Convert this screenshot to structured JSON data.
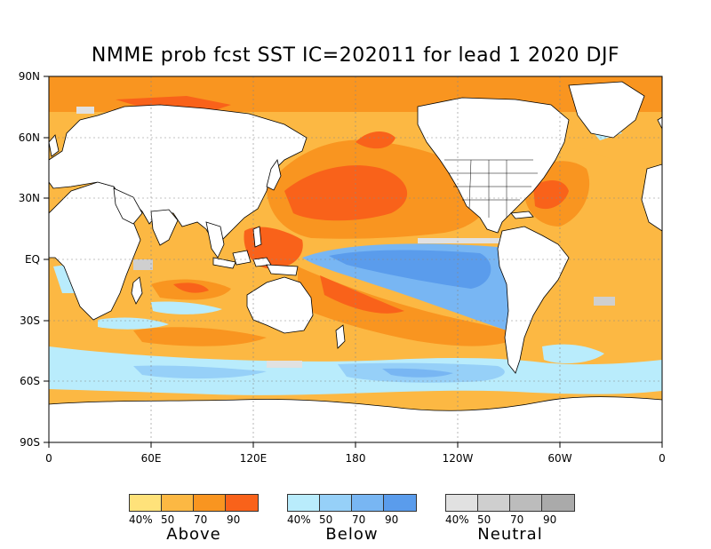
{
  "title": "NMME prob fcst SST IC=202011 for lead 1 2020 DJF",
  "y_axis": {
    "ticks": [
      "90N",
      "60N",
      "30N",
      "EQ",
      "30S",
      "60S",
      "90S"
    ]
  },
  "x_axis": {
    "ticks": [
      "0",
      "60E",
      "120E",
      "180",
      "120W",
      "60W",
      "0"
    ]
  },
  "legends": [
    {
      "name": "Above",
      "ticks": [
        "40%",
        "50",
        "70",
        "90"
      ],
      "colors": [
        "#ffe27a",
        "#fcb843",
        "#f99520",
        "#f9621a"
      ]
    },
    {
      "name": "Below",
      "ticks": [
        "40%",
        "50",
        "70",
        "90"
      ],
      "colors": [
        "#b9ecfc",
        "#96d0f8",
        "#78b6f3",
        "#5a9cec"
      ]
    },
    {
      "name": "Neutral",
      "ticks": [
        "40%",
        "50",
        "70",
        "90"
      ],
      "colors": [
        "#e1e1e1",
        "#cfcfcf",
        "#bcbcbc",
        "#aaaaaa"
      ]
    }
  ],
  "colors": {
    "land": "#ffffff",
    "coast": "#000000"
  }
}
